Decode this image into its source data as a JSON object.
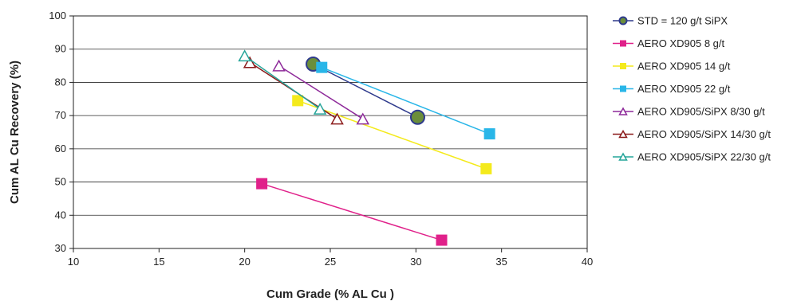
{
  "chart_data": {
    "type": "scatter",
    "title": "",
    "xlabel": "Cum Grade (% AL Cu )",
    "ylabel": "Cum AL Cu Recovery (%)",
    "xlim": [
      10,
      40
    ],
    "ylim": [
      30,
      100
    ],
    "xticks": [
      "10",
      "15",
      "20",
      "25",
      "30",
      "35",
      "40"
    ],
    "yticks": [
      "30",
      "40",
      "50",
      "60",
      "70",
      "80",
      "90",
      "100"
    ],
    "grid": "horizontal",
    "legend_position": "right",
    "series": [
      {
        "name": "STD = 120 g/t SiPX",
        "color": "#2e3a8c",
        "fill": "#6b8e3a",
        "marker": "circle",
        "points": [
          [
            24.0,
            85.5
          ],
          [
            30.1,
            69.5
          ]
        ]
      },
      {
        "name": "AERO XD905 8 g/t",
        "color": "#e0218a",
        "fill": "#e0218a",
        "marker": "square",
        "points": [
          [
            21.0,
            49.5
          ],
          [
            31.5,
            32.5
          ]
        ]
      },
      {
        "name": "AERO XD905 14 g/t",
        "color": "#f4ea1c",
        "fill": "#f4ea1c",
        "marker": "square",
        "points": [
          [
            23.1,
            74.5
          ],
          [
            34.1,
            54.0
          ]
        ]
      },
      {
        "name": "AERO XD905 22 g/t",
        "color": "#29b6e8",
        "fill": "#29b6e8",
        "marker": "square",
        "points": [
          [
            24.5,
            84.5
          ],
          [
            34.3,
            64.5
          ]
        ]
      },
      {
        "name": "AERO XD905/SiPX 8/30 g/t",
        "color": "#8e2a9a",
        "fill": "none",
        "marker": "triangle",
        "points": [
          [
            22.0,
            85.0
          ],
          [
            26.9,
            69.0
          ]
        ]
      },
      {
        "name": "AERO XD905/SiPX 14/30 g/t",
        "color": "#8b1a1a",
        "fill": "none",
        "marker": "triangle",
        "points": [
          [
            20.3,
            86.0
          ],
          [
            25.4,
            69.0
          ]
        ]
      },
      {
        "name": "AERO XD905/SiPX 22/30 g/t",
        "color": "#25a59a",
        "fill": "none",
        "marker": "triangle",
        "points": [
          [
            20.0,
            88.0
          ],
          [
            24.4,
            72.0
          ]
        ]
      }
    ]
  }
}
